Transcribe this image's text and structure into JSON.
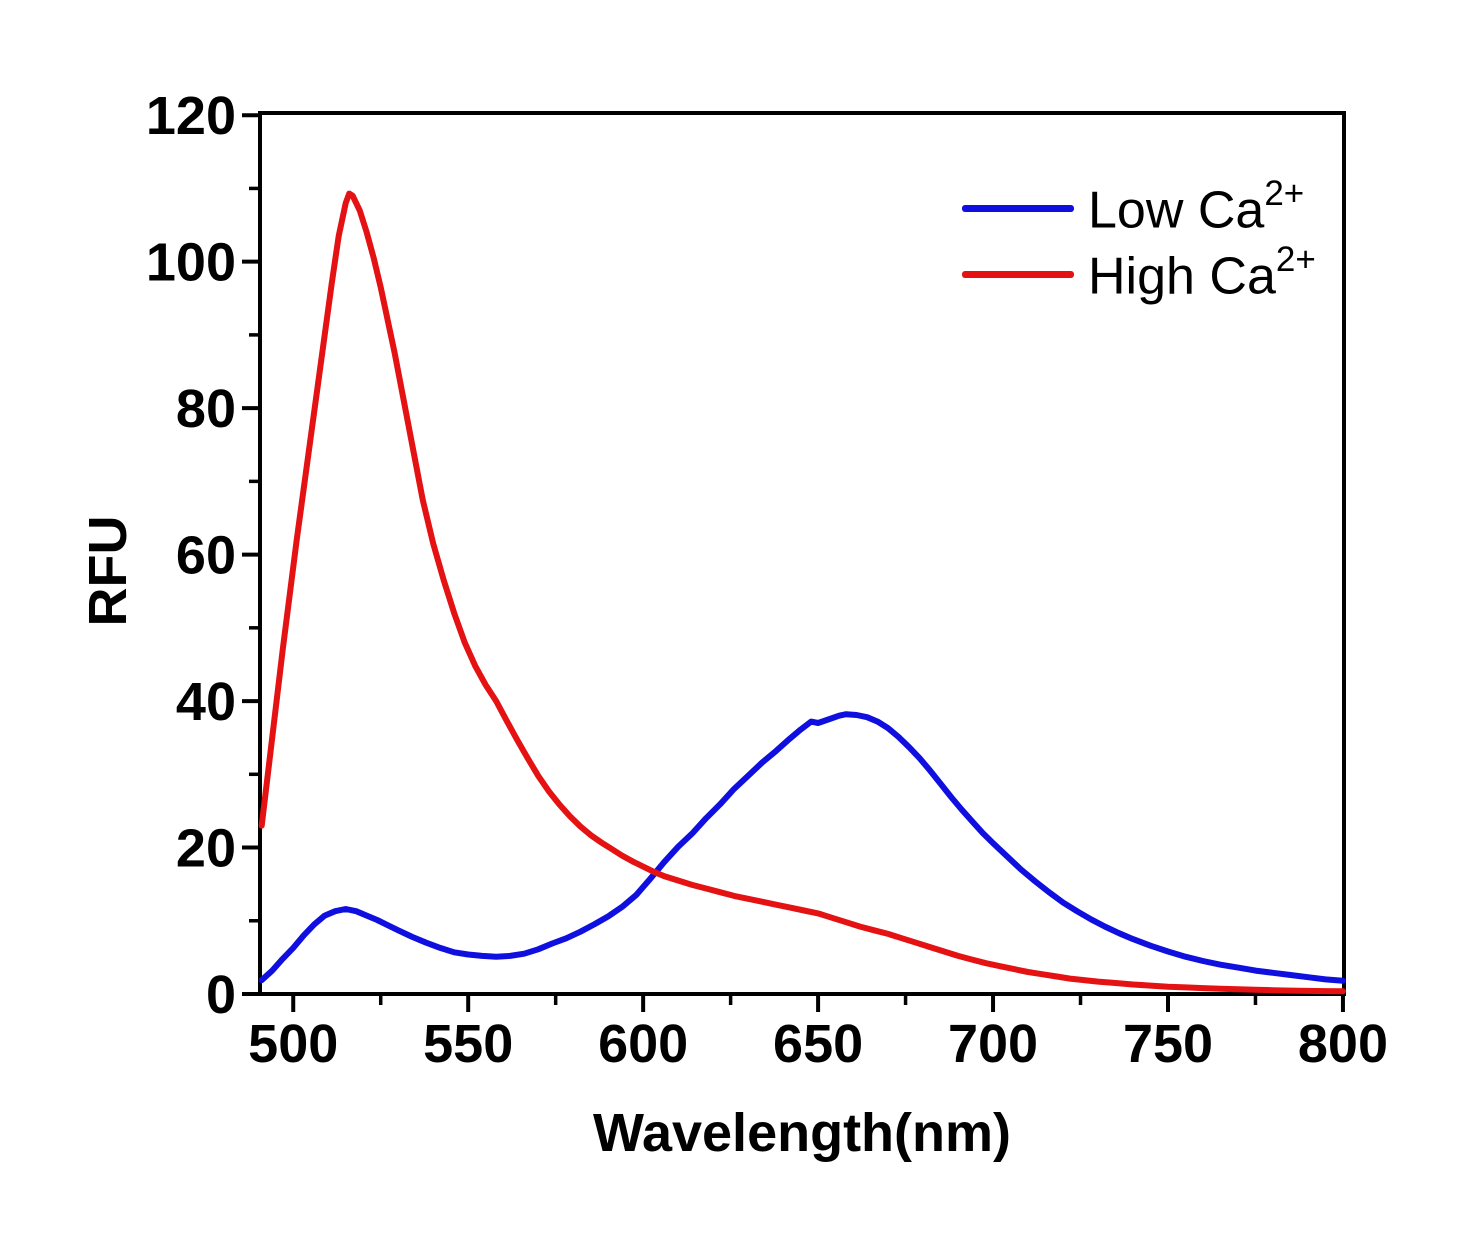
{
  "chart_data": {
    "type": "line",
    "title": "",
    "xlabel": "Wavelength(nm)",
    "ylabel": "RFU",
    "x_range": [
      490.5,
      800.3
    ],
    "y_range": [
      0,
      120.3
    ],
    "x_major_ticks": [
      500,
      550,
      600,
      650,
      700,
      750,
      800
    ],
    "x_minor_ticks": [
      525,
      575,
      625,
      675,
      725,
      775
    ],
    "y_major_ticks": [
      0,
      20,
      40,
      60,
      80,
      100,
      120
    ],
    "y_minor_ticks": [
      10,
      30,
      50,
      70,
      90,
      110
    ],
    "x_tick_labels": [
      "500",
      "550",
      "600",
      "650",
      "700",
      "750",
      "800"
    ],
    "y_tick_labels": [
      "0",
      "20",
      "40",
      "60",
      "80",
      "100",
      "120"
    ],
    "grid": false,
    "legend_position": "top-right",
    "axis_color": "#000000",
    "background_color": "#ffffff",
    "series": [
      {
        "name": "Low Ca2+",
        "label": "Low Ca",
        "label_sup": "2+",
        "color": "#0f0fe0",
        "points": [
          [
            491,
            1.9
          ],
          [
            494,
            3.2
          ],
          [
            497,
            4.8
          ],
          [
            500,
            6.3
          ],
          [
            503,
            8.0
          ],
          [
            506,
            9.5
          ],
          [
            509,
            10.7
          ],
          [
            512,
            11.3
          ],
          [
            515,
            11.6
          ],
          [
            518,
            11.3
          ],
          [
            521,
            10.7
          ],
          [
            524,
            10.1
          ],
          [
            527,
            9.4
          ],
          [
            530,
            8.7
          ],
          [
            534,
            7.8
          ],
          [
            538,
            7.0
          ],
          [
            542,
            6.3
          ],
          [
            546,
            5.7
          ],
          [
            550,
            5.4
          ],
          [
            554,
            5.2
          ],
          [
            558,
            5.1
          ],
          [
            562,
            5.2
          ],
          [
            566,
            5.5
          ],
          [
            570,
            6.1
          ],
          [
            574,
            6.9
          ],
          [
            578,
            7.6
          ],
          [
            582,
            8.5
          ],
          [
            586,
            9.5
          ],
          [
            590,
            10.6
          ],
          [
            594,
            11.9
          ],
          [
            598,
            13.5
          ],
          [
            602,
            15.7
          ],
          [
            606,
            18.0
          ],
          [
            610,
            20.1
          ],
          [
            614,
            21.9
          ],
          [
            618,
            24.0
          ],
          [
            622,
            25.9
          ],
          [
            626,
            28.0
          ],
          [
            630,
            29.8
          ],
          [
            634,
            31.6
          ],
          [
            638,
            33.2
          ],
          [
            642,
            34.9
          ],
          [
            645,
            36.1
          ],
          [
            648,
            37.2
          ],
          [
            650,
            37.0
          ],
          [
            653,
            37.5
          ],
          [
            656,
            38.0
          ],
          [
            658,
            38.2
          ],
          [
            661,
            38.1
          ],
          [
            664,
            37.8
          ],
          [
            667,
            37.2
          ],
          [
            670,
            36.3
          ],
          [
            673,
            35.1
          ],
          [
            676,
            33.7
          ],
          [
            679,
            32.2
          ],
          [
            682,
            30.5
          ],
          [
            685,
            28.7
          ],
          [
            688,
            26.9
          ],
          [
            691,
            25.2
          ],
          [
            694,
            23.6
          ],
          [
            697,
            22.0
          ],
          [
            700,
            20.6
          ],
          [
            704,
            18.8
          ],
          [
            708,
            17.0
          ],
          [
            712,
            15.4
          ],
          [
            716,
            13.9
          ],
          [
            720,
            12.5
          ],
          [
            724,
            11.3
          ],
          [
            728,
            10.2
          ],
          [
            732,
            9.2
          ],
          [
            736,
            8.3
          ],
          [
            740,
            7.5
          ],
          [
            745,
            6.6
          ],
          [
            750,
            5.8
          ],
          [
            755,
            5.1
          ],
          [
            760,
            4.5
          ],
          [
            765,
            4.0
          ],
          [
            770,
            3.6
          ],
          [
            775,
            3.2
          ],
          [
            780,
            2.9
          ],
          [
            785,
            2.6
          ],
          [
            790,
            2.3
          ],
          [
            795,
            2.0
          ],
          [
            800,
            1.8
          ]
        ]
      },
      {
        "name": "High Ca2+",
        "label": "High Ca",
        "label_sup": "2+",
        "color": "#e41212",
        "points": [
          [
            491,
            23.0
          ],
          [
            493,
            31.0
          ],
          [
            495,
            39.0
          ],
          [
            497,
            47.0
          ],
          [
            499,
            54.5
          ],
          [
            501,
            62.0
          ],
          [
            503,
            69.0
          ],
          [
            505,
            76.0
          ],
          [
            507,
            83.0
          ],
          [
            509,
            90.0
          ],
          [
            511,
            97.0
          ],
          [
            513,
            103.5
          ],
          [
            515,
            108.0
          ],
          [
            516,
            109.3
          ],
          [
            517,
            109.0
          ],
          [
            519,
            107.0
          ],
          [
            521,
            104.0
          ],
          [
            523,
            100.5
          ],
          [
            525,
            96.5
          ],
          [
            527,
            92.0
          ],
          [
            529,
            87.5
          ],
          [
            531,
            82.5
          ],
          [
            533,
            77.5
          ],
          [
            535,
            72.5
          ],
          [
            537,
            67.5
          ],
          [
            540,
            61.5
          ],
          [
            543,
            56.5
          ],
          [
            546,
            52.0
          ],
          [
            549,
            48.0
          ],
          [
            552,
            44.8
          ],
          [
            555,
            42.2
          ],
          [
            558,
            40.0
          ],
          [
            561,
            37.3
          ],
          [
            564,
            34.7
          ],
          [
            567,
            32.2
          ],
          [
            570,
            29.8
          ],
          [
            573,
            27.7
          ],
          [
            576,
            25.9
          ],
          [
            579,
            24.3
          ],
          [
            582,
            22.9
          ],
          [
            585,
            21.7
          ],
          [
            588,
            20.7
          ],
          [
            591,
            19.8
          ],
          [
            594,
            18.9
          ],
          [
            597,
            18.1
          ],
          [
            600,
            17.4
          ],
          [
            603,
            16.7
          ],
          [
            606,
            16.1
          ],
          [
            610,
            15.5
          ],
          [
            614,
            14.9
          ],
          [
            618,
            14.4
          ],
          [
            622,
            13.9
          ],
          [
            626,
            13.4
          ],
          [
            630,
            13.0
          ],
          [
            634,
            12.6
          ],
          [
            638,
            12.2
          ],
          [
            642,
            11.8
          ],
          [
            646,
            11.4
          ],
          [
            650,
            11.0
          ],
          [
            654,
            10.4
          ],
          [
            658,
            9.8
          ],
          [
            662,
            9.2
          ],
          [
            666,
            8.7
          ],
          [
            670,
            8.2
          ],
          [
            674,
            7.6
          ],
          [
            678,
            7.0
          ],
          [
            682,
            6.4
          ],
          [
            686,
            5.8
          ],
          [
            690,
            5.2
          ],
          [
            694,
            4.7
          ],
          [
            698,
            4.2
          ],
          [
            702,
            3.8
          ],
          [
            706,
            3.4
          ],
          [
            710,
            3.0
          ],
          [
            714,
            2.7
          ],
          [
            718,
            2.4
          ],
          [
            722,
            2.1
          ],
          [
            726,
            1.9
          ],
          [
            730,
            1.7
          ],
          [
            735,
            1.5
          ],
          [
            740,
            1.3
          ],
          [
            745,
            1.15
          ],
          [
            750,
            1.0
          ],
          [
            755,
            0.9
          ],
          [
            760,
            0.8
          ],
          [
            765,
            0.72
          ],
          [
            770,
            0.65
          ],
          [
            775,
            0.58
          ],
          [
            780,
            0.52
          ],
          [
            785,
            0.47
          ],
          [
            790,
            0.43
          ],
          [
            795,
            0.4
          ],
          [
            800,
            0.38
          ]
        ]
      }
    ]
  }
}
